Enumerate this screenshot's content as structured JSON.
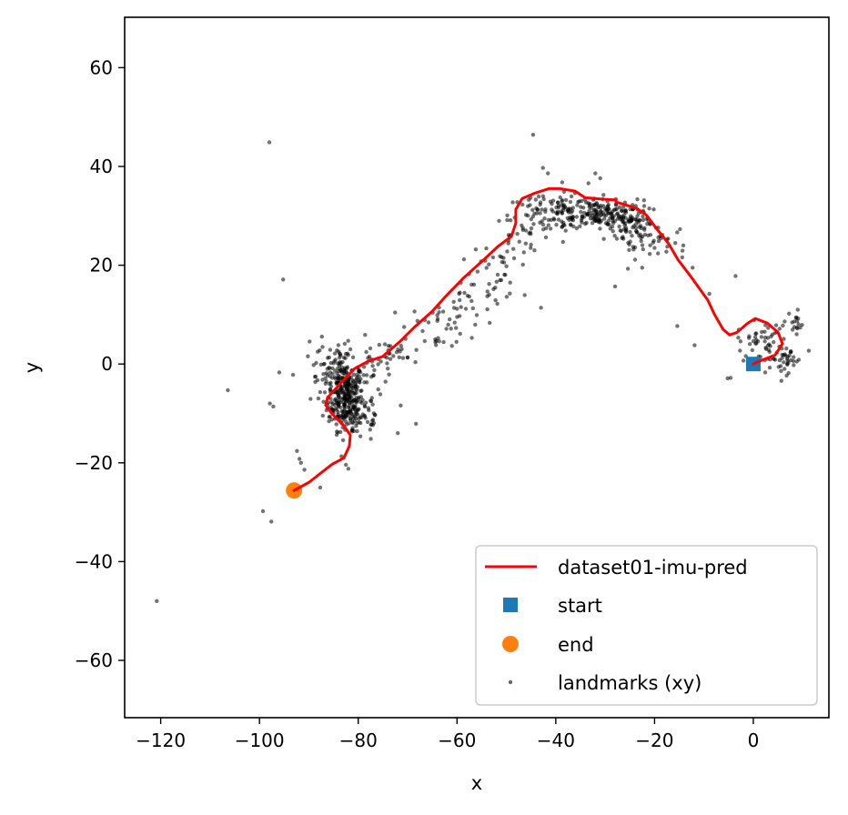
{
  "chart_data": {
    "type": "line",
    "title": "",
    "xlabel": "x",
    "ylabel": "y",
    "xlim": [
      -127.3,
      15.3
    ],
    "ylim": [
      -71.6,
      70.2
    ],
    "xticks": [
      -120,
      -100,
      -80,
      -60,
      -40,
      -20,
      0
    ],
    "yticks": [
      -60,
      -40,
      -20,
      0,
      20,
      40,
      60
    ],
    "xtick_labels": [
      "−120",
      "−100",
      "−80",
      "−60",
      "−40",
      "−20",
      "0"
    ],
    "ytick_labels": [
      "−60",
      "−40",
      "−20",
      "0",
      "20",
      "40",
      "60"
    ],
    "grid": false,
    "legend": {
      "placement": "lower-right",
      "entries": [
        {
          "label": "dataset01-imu-pred",
          "marker": "line",
          "color": "#ff0000"
        },
        {
          "label": "start",
          "marker": "square",
          "color": "#1f77b4"
        },
        {
          "label": "end",
          "marker": "circle",
          "color": "#ff7f0e"
        },
        {
          "label": "landmarks (xy)",
          "marker": "dot",
          "color": "#000000"
        }
      ]
    },
    "series": [
      {
        "name": "dataset01-imu-pred",
        "color": "#ff0000",
        "x": [
          0,
          1.3,
          4.4,
          5.9,
          5.0,
          2.8,
          0.4,
          -1.1,
          -3.3,
          -4.8,
          -6.1,
          -7.9,
          -9.2,
          -12.5,
          -15.3,
          -17.1,
          -19.5,
          -21.7,
          -23.6,
          -27.8,
          -27.8,
          -31.0,
          -34.1,
          -36.1,
          -39.2,
          -41.4,
          -44.2,
          -46.8,
          -48.1,
          -48.1,
          -49.0,
          -51.6,
          -54.5,
          -58.6,
          -62.2,
          -65.0,
          -68.7,
          -71.5,
          -75.1,
          -77.9,
          -80.7,
          -83.4,
          -86.2,
          -86.6,
          -85.3,
          -82.9,
          -81.6,
          -81.8,
          -82.9,
          -85.3,
          -87.1,
          -89.9,
          -93.0
        ],
        "y": [
          0,
          0.6,
          1.8,
          4.1,
          6.4,
          8.3,
          9.2,
          8.3,
          6.4,
          5.9,
          7.0,
          10.1,
          12.9,
          17.5,
          21.2,
          24.3,
          27.3,
          30.2,
          31.5,
          32.8,
          33.2,
          33.4,
          33.7,
          35.0,
          35.5,
          35.5,
          34.6,
          33.5,
          31.3,
          28.5,
          25.8,
          23.9,
          21.2,
          17.5,
          13.8,
          10.7,
          7.4,
          4.6,
          1.5,
          0.6,
          -0.9,
          -3.7,
          -6.8,
          -8.3,
          -10.1,
          -12.5,
          -14.4,
          -16.6,
          -19.0,
          -20.3,
          -21.7,
          -23.9,
          -25.6
        ]
      },
      {
        "name": "start",
        "color": "#1f77b4",
        "x": [
          0
        ],
        "y": [
          0
        ]
      },
      {
        "name": "end",
        "color": "#ff7f0e",
        "x": [
          -93.0
        ],
        "y": [
          -25.6
        ]
      },
      {
        "name": "landmarks (xy)",
        "color": "#000000",
        "points": [
          [
            -98.0,
            44.9
          ],
          [
            -44.6,
            46.4
          ],
          [
            -95.2,
            17.1
          ],
          [
            -106.4,
            -5.3
          ],
          [
            -120.8,
            -48.0
          ],
          [
            -99.3,
            -29.8
          ],
          [
            -97.6,
            -31.9
          ],
          [
            -97.9,
            -8.0
          ],
          [
            -97.2,
            -8.6
          ],
          [
            -96.0,
            -1.7
          ],
          [
            -93.2,
            -2.2
          ],
          [
            -92.4,
            -17.6
          ],
          [
            -91.6,
            -20.0
          ],
          [
            -91.9,
            -19.2
          ],
          [
            -90.9,
            -21.4
          ],
          [
            -87.7,
            -25.0
          ],
          [
            -83.4,
            -18.7
          ],
          [
            -82.5,
            -20.4
          ],
          [
            -82.0,
            -21.2
          ],
          [
            -71.4,
            -8.4
          ],
          [
            -68.3,
            -12.1
          ],
          [
            -72.0,
            -14.0
          ],
          [
            -78.6,
            5.9
          ],
          [
            -43.0,
            11.4
          ],
          [
            -38.0,
            27.0
          ],
          [
            -36.1,
            34.6
          ],
          [
            -38.7,
            36.8
          ],
          [
            -41.6,
            38.6
          ],
          [
            -42.6,
            39.7
          ],
          [
            -33.4,
            36.6
          ],
          [
            -32.0,
            38.6
          ],
          [
            -31.0,
            37.6
          ],
          [
            -28.0,
            15.7
          ],
          [
            -25.4,
            19.3
          ],
          [
            -22.5,
            19.5
          ],
          [
            -15.4,
            7.7
          ],
          [
            -11.9,
            3.8
          ],
          [
            -3.6,
            17.8
          ],
          [
            -19.3,
            22.4
          ],
          [
            -20.0,
            23.5
          ],
          [
            -15.8,
            24.5
          ],
          [
            -17.5,
            25.2
          ],
          [
            -14.4,
            21.6
          ],
          [
            -12.3,
            19.5
          ],
          [
            -8.9,
            14.2
          ],
          [
            -4.6,
            -2.8
          ],
          [
            -5.2,
            -2.9
          ],
          [
            9.0,
            11.0
          ],
          [
            9.1,
            9.2
          ],
          [
            8.3,
            7.5
          ],
          [
            8.9,
            7.2
          ],
          [
            7.6,
            0.8
          ],
          [
            8.8,
            0.5
          ],
          [
            6.3,
            -1.0
          ],
          [
            5.6,
            -1.4
          ],
          [
            -2.7,
            2.7
          ],
          [
            2.4,
            -1.7
          ],
          [
            -74.6,
            4.0
          ],
          [
            -72.2,
            2.4
          ],
          [
            -66.5,
            8.9
          ],
          [
            -64.0,
            9.9
          ],
          [
            -60.1,
            4.5
          ],
          [
            -57.0,
            5.3
          ],
          [
            -56.0,
            9.9
          ],
          [
            -52.2,
            12.9
          ],
          [
            -53.5,
            16.2
          ],
          [
            -50.0,
            19.8
          ],
          [
            -52.7,
            21.6
          ],
          [
            -48.6,
            23.3
          ],
          [
            -45.1,
            23.5
          ],
          [
            -56.2,
            23.2
          ],
          [
            -58.6,
            21.2
          ]
        ],
        "clusters": [
          {
            "cx": -82.5,
            "cy": -6.5,
            "sx": 1.8,
            "sy": 3.4,
            "n": 260
          },
          {
            "cx": -84.5,
            "cy": -3.0,
            "sx": 2.6,
            "sy": 2.2,
            "n": 70
          },
          {
            "cx": -80.0,
            "cy": -10.5,
            "sx": 2.8,
            "sy": 2.8,
            "n": 60
          },
          {
            "cx": -86.0,
            "cy": 1.0,
            "sx": 2.8,
            "sy": 2.4,
            "n": 25
          },
          {
            "cx": -76.5,
            "cy": -1.5,
            "sx": 2.4,
            "sy": 2.2,
            "n": 25
          },
          {
            "cx": -71.0,
            "cy": 2.5,
            "sx": 2.8,
            "sy": 2.0,
            "n": 22
          },
          {
            "cx": -64.0,
            "cy": 8.0,
            "sx": 3.0,
            "sy": 2.4,
            "n": 25
          },
          {
            "cx": -57.5,
            "cy": 12.5,
            "sx": 2.8,
            "sy": 2.6,
            "n": 25
          },
          {
            "cx": -52.0,
            "cy": 18.0,
            "sx": 2.4,
            "sy": 2.4,
            "n": 25
          },
          {
            "cx": -48.0,
            "cy": 25.5,
            "sx": 2.2,
            "sy": 2.4,
            "n": 25
          },
          {
            "cx": -44.0,
            "cy": 30.0,
            "sx": 2.8,
            "sy": 2.4,
            "n": 45
          },
          {
            "cx": -38.0,
            "cy": 31.0,
            "sx": 2.8,
            "sy": 2.2,
            "n": 60
          },
          {
            "cx": -32.0,
            "cy": 30.5,
            "sx": 2.6,
            "sy": 1.6,
            "n": 110
          },
          {
            "cx": -25.5,
            "cy": 29.5,
            "sx": 2.4,
            "sy": 1.8,
            "n": 90
          },
          {
            "cx": -24.0,
            "cy": 25.0,
            "sx": 2.8,
            "sy": 2.4,
            "n": 35
          },
          {
            "cx": -18.0,
            "cy": 26.0,
            "sx": 2.8,
            "sy": 2.2,
            "n": 20
          },
          {
            "cx": 2.0,
            "cy": 4.5,
            "sx": 2.6,
            "sy": 2.0,
            "n": 55
          },
          {
            "cx": 6.5,
            "cy": 1.0,
            "sx": 1.8,
            "sy": 1.4,
            "n": 30
          },
          {
            "cx": 8.5,
            "cy": 7.5,
            "sx": 0.8,
            "sy": 1.2,
            "n": 12
          }
        ]
      }
    ]
  }
}
